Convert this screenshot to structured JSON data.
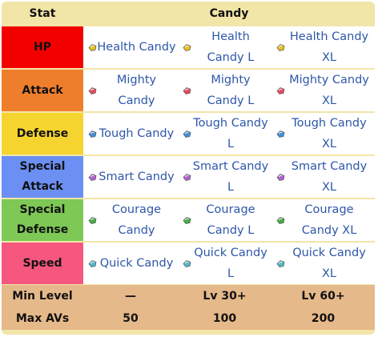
{
  "header": {
    "stat": "Stat",
    "candy": "Candy"
  },
  "rows": [
    {
      "stat_line1": "HP",
      "stat_line2": "",
      "color": "#f20000",
      "candies": [
        {
          "name": "Health Candy",
          "icon_color": "#e8c020"
        },
        {
          "name": "Health Candy L",
          "icon_color": "#e8c020"
        },
        {
          "name": "Health Candy XL",
          "icon_color": "#e8c020"
        }
      ]
    },
    {
      "stat_line1": "Attack",
      "stat_line2": "",
      "color": "#ef7e2c",
      "candies": [
        {
          "name": "Mighty Candy",
          "icon_color": "#e84860"
        },
        {
          "name": "Mighty Candy L",
          "icon_color": "#e84860"
        },
        {
          "name": "Mighty Candy XL",
          "icon_color": "#e84860"
        }
      ]
    },
    {
      "stat_line1": "Defense",
      "stat_line2": "",
      "color": "#f5d42f",
      "candies": [
        {
          "name": "Tough Candy",
          "icon_color": "#4090d8"
        },
        {
          "name": "Tough Candy L",
          "icon_color": "#4090d8"
        },
        {
          "name": "Tough Candy XL",
          "icon_color": "#4090d8"
        }
      ]
    },
    {
      "stat_line1": "Special",
      "stat_line2": "Attack",
      "color": "#6b8ff2",
      "candies": [
        {
          "name": "Smart Candy",
          "icon_color": "#b060d0"
        },
        {
          "name": "Smart Candy L",
          "icon_color": "#b060d0"
        },
        {
          "name": "Smart Candy XL",
          "icon_color": "#b060d0"
        }
      ]
    },
    {
      "stat_line1": "Special",
      "stat_line2": "Defense",
      "color": "#7ec856",
      "candies": [
        {
          "name": "Courage Candy",
          "icon_color": "#40b040"
        },
        {
          "name": "Courage Candy L",
          "icon_color": "#40b040"
        },
        {
          "name": "Courage Candy XL",
          "icon_color": "#40b040"
        }
      ]
    },
    {
      "stat_line1": "Speed",
      "stat_line2": "",
      "color": "#f5577f",
      "candies": [
        {
          "name": "Quick Candy",
          "icon_color": "#50b8c8"
        },
        {
          "name": "Quick Candy L",
          "icon_color": "#50b8c8"
        },
        {
          "name": "Quick Candy XL",
          "icon_color": "#50b8c8"
        }
      ]
    }
  ],
  "footer": [
    {
      "label": "Min Level",
      "values": [
        "—",
        "Lv 30+",
        "Lv 60+"
      ]
    },
    {
      "label": "Max AVs",
      "values": [
        "50",
        "100",
        "200"
      ]
    }
  ]
}
